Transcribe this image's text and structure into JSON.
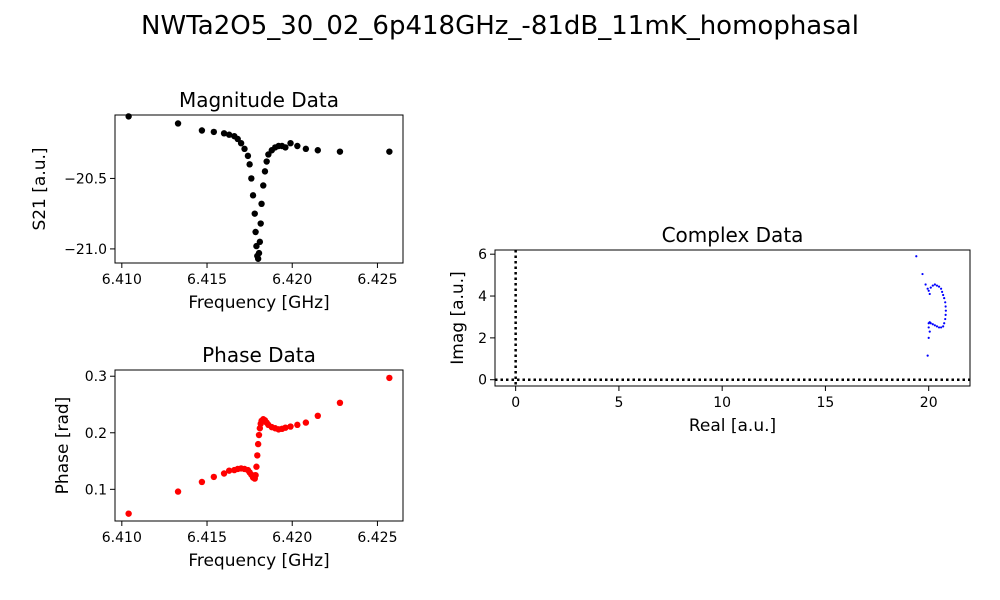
{
  "figure": {
    "suptitle": "NWTa2O5_30_02_6p418GHz_-81dB_11mK_homophasal"
  },
  "chart_data": [
    {
      "id": "magnitude",
      "type": "scatter",
      "title": "Magnitude Data",
      "xlabel": "Frequency [GHz]",
      "ylabel": "S21 [a.u.]",
      "xlim": [
        6.4096,
        6.4265
      ],
      "ylim": [
        -21.1,
        -20.05
      ],
      "xticks": [
        6.41,
        6.415,
        6.42,
        6.425
      ],
      "xtick_labels": [
        "6.410",
        "6.415",
        "6.420",
        "6.425"
      ],
      "yticks": [
        -20.5,
        -21.0
      ],
      "ytick_labels": [
        "−20.5",
        "−21.0"
      ],
      "marker_color": "#000000",
      "x": [
        6.4104,
        6.4133,
        6.4147,
        6.4154,
        6.416,
        6.4163,
        6.4166,
        6.4168,
        6.417,
        6.4172,
        6.4174,
        6.4175,
        6.4176,
        6.4177,
        6.4178,
        6.41785,
        6.4179,
        6.41795,
        6.418,
        6.41805,
        6.4181,
        6.41815,
        6.4182,
        6.4183,
        6.4184,
        6.4185,
        6.4186,
        6.4188,
        6.419,
        6.4192,
        6.4194,
        6.4196,
        6.4199,
        6.4203,
        6.4208,
        6.4215,
        6.4228,
        6.4257
      ],
      "y": [
        -20.06,
        -20.11,
        -20.16,
        -20.17,
        -20.18,
        -20.19,
        -20.2,
        -20.22,
        -20.25,
        -20.29,
        -20.34,
        -20.4,
        -20.5,
        -20.62,
        -20.75,
        -20.88,
        -20.98,
        -21.05,
        -21.07,
        -21.03,
        -20.95,
        -20.82,
        -20.68,
        -20.55,
        -20.45,
        -20.38,
        -20.33,
        -20.3,
        -20.28,
        -20.27,
        -20.27,
        -20.28,
        -20.25,
        -20.27,
        -20.29,
        -20.3,
        -20.31,
        -20.31
      ]
    },
    {
      "id": "phase",
      "type": "scatter",
      "title": "Phase Data",
      "xlabel": "Frequency [GHz]",
      "ylabel": "Phase [rad]",
      "xlim": [
        6.4096,
        6.4265
      ],
      "ylim": [
        0.044,
        0.311
      ],
      "xticks": [
        6.41,
        6.415,
        6.42,
        6.425
      ],
      "xtick_labels": [
        "6.410",
        "6.415",
        "6.420",
        "6.425"
      ],
      "yticks": [
        0.1,
        0.2,
        0.3
      ],
      "ytick_labels": [
        "0.1",
        "0.2",
        "0.3"
      ],
      "marker_color": "#ff0000",
      "x": [
        6.4104,
        6.4133,
        6.4147,
        6.4154,
        6.416,
        6.4163,
        6.4166,
        6.4168,
        6.417,
        6.4172,
        6.4174,
        6.4175,
        6.4176,
        6.4177,
        6.4178,
        6.41785,
        6.4179,
        6.41795,
        6.418,
        6.41805,
        6.4181,
        6.41815,
        6.4182,
        6.4183,
        6.4184,
        6.4185,
        6.4186,
        6.4188,
        6.419,
        6.4192,
        6.4194,
        6.4196,
        6.4199,
        6.4203,
        6.4208,
        6.4215,
        6.4228,
        6.4257
      ],
      "y": [
        0.057,
        0.096,
        0.113,
        0.122,
        0.128,
        0.133,
        0.134,
        0.136,
        0.137,
        0.136,
        0.134,
        0.13,
        0.126,
        0.121,
        0.119,
        0.125,
        0.14,
        0.16,
        0.18,
        0.196,
        0.208,
        0.216,
        0.221,
        0.224,
        0.222,
        0.218,
        0.214,
        0.21,
        0.208,
        0.206,
        0.207,
        0.209,
        0.211,
        0.214,
        0.218,
        0.23,
        0.253,
        0.297
      ]
    },
    {
      "id": "complex",
      "type": "scatter",
      "title": "Complex Data",
      "xlabel": "Real [a.u.]",
      "ylabel": "Imag [a.u.]",
      "xlim": [
        -1.0,
        22.0
      ],
      "ylim": [
        -0.3,
        6.2
      ],
      "xticks": [
        0,
        5,
        10,
        15,
        20
      ],
      "xtick_labels": [
        "0",
        "5",
        "10",
        "15",
        "20"
      ],
      "yticks": [
        0,
        2,
        4,
        6
      ],
      "ytick_labels": [
        "0",
        "2",
        "4",
        "6"
      ],
      "marker_color": "#0000ff",
      "reference_lines": {
        "x0": 0,
        "y0": 0,
        "style": "dotted",
        "color": "#000000"
      },
      "x": [
        19.4,
        19.7,
        19.85,
        19.95,
        20.0,
        20.1,
        20.2,
        20.3,
        20.4,
        20.5,
        20.6,
        20.65,
        20.7,
        20.75,
        20.8,
        20.82,
        20.83,
        20.82,
        20.8,
        20.75,
        20.7,
        20.6,
        20.5,
        20.4,
        20.3,
        20.2,
        20.1,
        20.05,
        20.0,
        20.0,
        20.05,
        20.0,
        19.95,
        20.05
      ],
      "y": [
        5.9,
        5.05,
        4.55,
        4.35,
        4.25,
        4.4,
        4.5,
        4.55,
        4.5,
        4.45,
        4.35,
        4.2,
        4.05,
        3.9,
        3.7,
        3.5,
        3.3,
        3.1,
        2.9,
        2.7,
        2.55,
        2.5,
        2.5,
        2.55,
        2.6,
        2.65,
        2.7,
        2.75,
        2.7,
        2.5,
        2.3,
        2.0,
        1.15,
        4.1
      ]
    }
  ]
}
